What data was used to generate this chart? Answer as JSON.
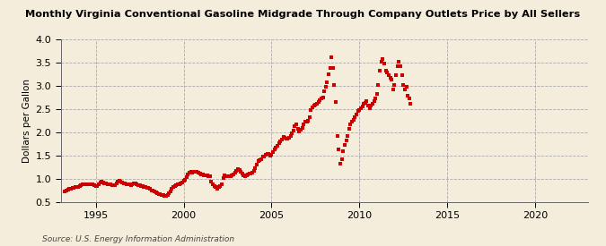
{
  "title": "Monthly Virginia Conventional Gasoline Midgrade Through Company Outlets Price by All Sellers",
  "ylabel": "Dollars per Gallon",
  "source": "Source: U.S. Energy Information Administration",
  "background_color": "#f5eddc",
  "plot_bg_color": "#f5eddc",
  "marker_color": "#cc0000",
  "xlim": [
    1993.0,
    2023.0
  ],
  "ylim": [
    0.5,
    4.0
  ],
  "yticks": [
    0.5,
    1.0,
    1.5,
    2.0,
    2.5,
    3.0,
    3.5,
    4.0
  ],
  "xticks": [
    1995,
    2000,
    2005,
    2010,
    2015,
    2020
  ],
  "data": [
    [
      1993.25,
      0.73
    ],
    [
      1993.33,
      0.75
    ],
    [
      1993.42,
      0.76
    ],
    [
      1993.5,
      0.77
    ],
    [
      1993.58,
      0.77
    ],
    [
      1993.67,
      0.79
    ],
    [
      1993.75,
      0.8
    ],
    [
      1993.83,
      0.81
    ],
    [
      1993.92,
      0.81
    ],
    [
      1994.0,
      0.82
    ],
    [
      1994.08,
      0.84
    ],
    [
      1994.17,
      0.86
    ],
    [
      1994.25,
      0.87
    ],
    [
      1994.33,
      0.88
    ],
    [
      1994.42,
      0.87
    ],
    [
      1994.5,
      0.87
    ],
    [
      1994.58,
      0.87
    ],
    [
      1994.67,
      0.88
    ],
    [
      1994.75,
      0.88
    ],
    [
      1994.83,
      0.87
    ],
    [
      1994.92,
      0.86
    ],
    [
      1995.0,
      0.84
    ],
    [
      1995.08,
      0.84
    ],
    [
      1995.17,
      0.87
    ],
    [
      1995.25,
      0.91
    ],
    [
      1995.33,
      0.93
    ],
    [
      1995.42,
      0.92
    ],
    [
      1995.5,
      0.9
    ],
    [
      1995.58,
      0.89
    ],
    [
      1995.67,
      0.88
    ],
    [
      1995.75,
      0.87
    ],
    [
      1995.83,
      0.87
    ],
    [
      1995.92,
      0.86
    ],
    [
      1996.0,
      0.85
    ],
    [
      1996.08,
      0.86
    ],
    [
      1996.17,
      0.9
    ],
    [
      1996.25,
      0.93
    ],
    [
      1996.33,
      0.95
    ],
    [
      1996.42,
      0.94
    ],
    [
      1996.5,
      0.92
    ],
    [
      1996.58,
      0.9
    ],
    [
      1996.67,
      0.9
    ],
    [
      1996.75,
      0.88
    ],
    [
      1996.83,
      0.88
    ],
    [
      1996.92,
      0.87
    ],
    [
      1997.0,
      0.86
    ],
    [
      1997.08,
      0.87
    ],
    [
      1997.17,
      0.89
    ],
    [
      1997.25,
      0.89
    ],
    [
      1997.33,
      0.88
    ],
    [
      1997.42,
      0.86
    ],
    [
      1997.5,
      0.85
    ],
    [
      1997.58,
      0.84
    ],
    [
      1997.67,
      0.83
    ],
    [
      1997.75,
      0.82
    ],
    [
      1997.83,
      0.81
    ],
    [
      1997.92,
      0.8
    ],
    [
      1998.0,
      0.79
    ],
    [
      1998.08,
      0.77
    ],
    [
      1998.17,
      0.75
    ],
    [
      1998.25,
      0.74
    ],
    [
      1998.33,
      0.72
    ],
    [
      1998.42,
      0.7
    ],
    [
      1998.5,
      0.68
    ],
    [
      1998.58,
      0.67
    ],
    [
      1998.67,
      0.66
    ],
    [
      1998.75,
      0.65
    ],
    [
      1998.83,
      0.64
    ],
    [
      1998.92,
      0.63
    ],
    [
      1999.0,
      0.63
    ],
    [
      1999.08,
      0.65
    ],
    [
      1999.17,
      0.68
    ],
    [
      1999.25,
      0.72
    ],
    [
      1999.33,
      0.77
    ],
    [
      1999.42,
      0.81
    ],
    [
      1999.5,
      0.84
    ],
    [
      1999.58,
      0.86
    ],
    [
      1999.67,
      0.88
    ],
    [
      1999.75,
      0.87
    ],
    [
      1999.83,
      0.89
    ],
    [
      1999.92,
      0.92
    ],
    [
      2000.0,
      0.95
    ],
    [
      2000.08,
      0.98
    ],
    [
      2000.17,
      1.03
    ],
    [
      2000.25,
      1.08
    ],
    [
      2000.33,
      1.12
    ],
    [
      2000.42,
      1.14
    ],
    [
      2000.5,
      1.13
    ],
    [
      2000.58,
      1.14
    ],
    [
      2000.67,
      1.15
    ],
    [
      2000.75,
      1.14
    ],
    [
      2000.83,
      1.13
    ],
    [
      2000.92,
      1.1
    ],
    [
      2001.0,
      1.09
    ],
    [
      2001.08,
      1.08
    ],
    [
      2001.17,
      1.07
    ],
    [
      2001.25,
      1.06
    ],
    [
      2001.33,
      1.06
    ],
    [
      2001.42,
      1.05
    ],
    [
      2001.5,
      1.04
    ],
    [
      2001.58,
      0.94
    ],
    [
      2001.67,
      0.88
    ],
    [
      2001.75,
      0.84
    ],
    [
      2001.83,
      0.82
    ],
    [
      2001.92,
      0.78
    ],
    [
      2002.0,
      0.82
    ],
    [
      2002.08,
      0.84
    ],
    [
      2002.17,
      0.88
    ],
    [
      2002.25,
      1.02
    ],
    [
      2002.33,
      1.06
    ],
    [
      2002.42,
      1.04
    ],
    [
      2002.5,
      1.04
    ],
    [
      2002.58,
      1.04
    ],
    [
      2002.67,
      1.05
    ],
    [
      2002.75,
      1.07
    ],
    [
      2002.83,
      1.09
    ],
    [
      2002.92,
      1.12
    ],
    [
      2003.0,
      1.17
    ],
    [
      2003.08,
      1.2
    ],
    [
      2003.17,
      1.18
    ],
    [
      2003.25,
      1.15
    ],
    [
      2003.33,
      1.1
    ],
    [
      2003.42,
      1.07
    ],
    [
      2003.5,
      1.05
    ],
    [
      2003.58,
      1.07
    ],
    [
      2003.67,
      1.08
    ],
    [
      2003.75,
      1.1
    ],
    [
      2003.83,
      1.11
    ],
    [
      2003.92,
      1.13
    ],
    [
      2004.0,
      1.16
    ],
    [
      2004.08,
      1.22
    ],
    [
      2004.17,
      1.3
    ],
    [
      2004.25,
      1.38
    ],
    [
      2004.33,
      1.4
    ],
    [
      2004.42,
      1.42
    ],
    [
      2004.5,
      1.47
    ],
    [
      2004.58,
      1.48
    ],
    [
      2004.67,
      1.52
    ],
    [
      2004.75,
      1.53
    ],
    [
      2004.83,
      1.54
    ],
    [
      2004.92,
      1.5
    ],
    [
      2005.0,
      1.52
    ],
    [
      2005.08,
      1.57
    ],
    [
      2005.17,
      1.62
    ],
    [
      2005.25,
      1.66
    ],
    [
      2005.33,
      1.7
    ],
    [
      2005.42,
      1.76
    ],
    [
      2005.5,
      1.8
    ],
    [
      2005.58,
      1.84
    ],
    [
      2005.67,
      1.9
    ],
    [
      2005.75,
      1.88
    ],
    [
      2005.83,
      1.86
    ],
    [
      2005.92,
      1.85
    ],
    [
      2006.0,
      1.87
    ],
    [
      2006.08,
      1.92
    ],
    [
      2006.17,
      1.98
    ],
    [
      2006.25,
      2.04
    ],
    [
      2006.33,
      2.12
    ],
    [
      2006.42,
      2.17
    ],
    [
      2006.5,
      2.08
    ],
    [
      2006.58,
      2.02
    ],
    [
      2006.67,
      2.06
    ],
    [
      2006.75,
      2.1
    ],
    [
      2006.83,
      2.16
    ],
    [
      2006.92,
      2.22
    ],
    [
      2007.0,
      2.22
    ],
    [
      2007.08,
      2.24
    ],
    [
      2007.17,
      2.32
    ],
    [
      2007.25,
      2.48
    ],
    [
      2007.33,
      2.53
    ],
    [
      2007.42,
      2.57
    ],
    [
      2007.5,
      2.59
    ],
    [
      2007.58,
      2.62
    ],
    [
      2007.67,
      2.65
    ],
    [
      2007.75,
      2.68
    ],
    [
      2007.83,
      2.72
    ],
    [
      2007.92,
      2.75
    ],
    [
      2008.0,
      2.88
    ],
    [
      2008.08,
      2.97
    ],
    [
      2008.17,
      3.08
    ],
    [
      2008.25,
      3.25
    ],
    [
      2008.33,
      3.38
    ],
    [
      2008.42,
      3.62
    ],
    [
      2008.5,
      3.38
    ],
    [
      2008.58,
      3.02
    ],
    [
      2008.67,
      2.65
    ],
    [
      2008.75,
      1.92
    ],
    [
      2008.83,
      1.62
    ],
    [
      2008.92,
      1.32
    ],
    [
      2009.0,
      1.42
    ],
    [
      2009.08,
      1.58
    ],
    [
      2009.17,
      1.72
    ],
    [
      2009.25,
      1.82
    ],
    [
      2009.33,
      1.92
    ],
    [
      2009.42,
      2.08
    ],
    [
      2009.5,
      2.17
    ],
    [
      2009.58,
      2.22
    ],
    [
      2009.67,
      2.27
    ],
    [
      2009.75,
      2.32
    ],
    [
      2009.83,
      2.38
    ],
    [
      2009.92,
      2.45
    ],
    [
      2010.0,
      2.48
    ],
    [
      2010.08,
      2.52
    ],
    [
      2010.17,
      2.56
    ],
    [
      2010.25,
      2.62
    ],
    [
      2010.33,
      2.64
    ],
    [
      2010.42,
      2.67
    ],
    [
      2010.5,
      2.58
    ],
    [
      2010.58,
      2.52
    ],
    [
      2010.67,
      2.57
    ],
    [
      2010.75,
      2.61
    ],
    [
      2010.83,
      2.67
    ],
    [
      2010.92,
      2.73
    ],
    [
      2011.0,
      2.82
    ],
    [
      2011.08,
      3.02
    ],
    [
      2011.17,
      3.32
    ],
    [
      2011.25,
      3.52
    ],
    [
      2011.33,
      3.57
    ],
    [
      2011.42,
      3.48
    ],
    [
      2011.5,
      3.32
    ],
    [
      2011.58,
      3.28
    ],
    [
      2011.67,
      3.22
    ],
    [
      2011.75,
      3.18
    ],
    [
      2011.83,
      3.13
    ],
    [
      2011.92,
      2.92
    ],
    [
      2012.0,
      3.02
    ],
    [
      2012.08,
      3.22
    ],
    [
      2012.17,
      3.42
    ],
    [
      2012.25,
      3.52
    ],
    [
      2012.33,
      3.42
    ],
    [
      2012.42,
      3.22
    ],
    [
      2012.5,
      3.02
    ],
    [
      2012.58,
      2.92
    ],
    [
      2012.67,
      2.97
    ],
    [
      2012.75,
      2.78
    ],
    [
      2012.83,
      2.72
    ],
    [
      2012.92,
      2.62
    ]
  ]
}
